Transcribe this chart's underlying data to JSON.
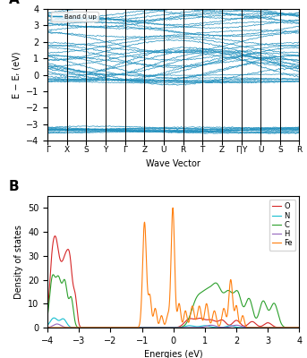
{
  "band_ylim": [
    -4,
    4
  ],
  "band_yticks": [
    -4,
    -3,
    -2,
    -1,
    0,
    1,
    2,
    3,
    4
  ],
  "band_ylabel": "E − Eᵣ (eV)",
  "band_xlabel": "Wave Vector",
  "kpoint_labels": [
    "Γ",
    "X",
    "S",
    "Y",
    "Γ",
    "Z",
    "U",
    "R",
    "T",
    "Z",
    "Γ|Y",
    "U",
    "S",
    "R"
  ],
  "band_color": "#1f8fbd",
  "band_legend": "Band 0 up",
  "dos_xlabel": "Energies (eV)",
  "dos_ylabel": "Density of states",
  "dos_xlim": [
    -4,
    4
  ],
  "dos_ylim": [
    0,
    55
  ],
  "dos_yticks": [
    0,
    10,
    20,
    30,
    40,
    50
  ],
  "dos_species": [
    "O",
    "N",
    "C",
    "H",
    "Fe"
  ],
  "dos_colors": [
    "#d62728",
    "#17becf",
    "#2ca02c",
    "#9467bd",
    "#ff7f0e"
  ],
  "panel_bg": "#ffffff",
  "num_kpoints": 300
}
